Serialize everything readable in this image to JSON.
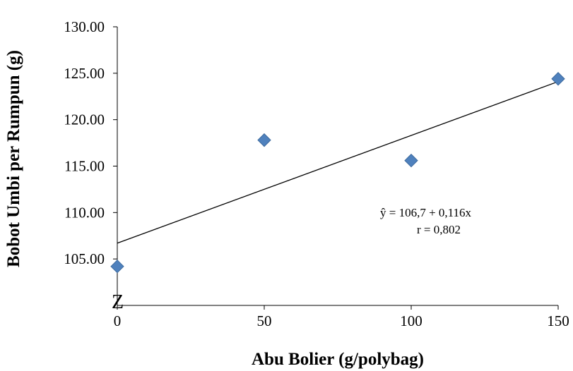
{
  "chart_data": {
    "type": "scatter",
    "title": "",
    "xlabel": "Abu Bolier (g/polybag)",
    "ylabel": "Bobot Umbi per Rumpun (g)",
    "x": [
      0,
      50,
      100,
      150
    ],
    "y": [
      104.2,
      117.8,
      115.6,
      124.4
    ],
    "xlim": [
      0,
      150
    ],
    "ylim": [
      100,
      130
    ],
    "x_ticks": [
      "0",
      "50",
      "100",
      "150"
    ],
    "y_ticks": [
      "105.00",
      "110.00",
      "115.00",
      "120.00",
      "125.00",
      "130.00"
    ],
    "y_tick_values": [
      105,
      110,
      115,
      120,
      125,
      130
    ],
    "axis_break_mark": "Z",
    "trendline": {
      "intercept": 106.7,
      "slope": 0.116,
      "equation_label": "ŷ =  106,7 + 0,116x",
      "r_label": "r = 0,802"
    },
    "marker_color": "#4f81bd",
    "line_color": "#000000",
    "grid": false,
    "legend": "none"
  }
}
